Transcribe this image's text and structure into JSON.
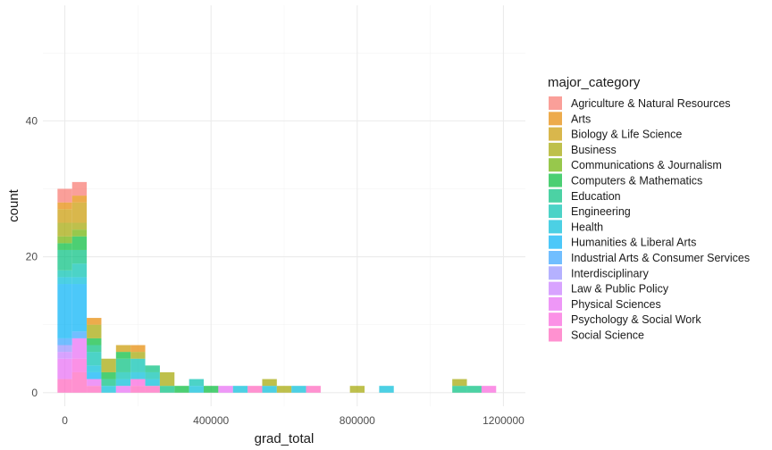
{
  "chart_data": {
    "type": "bar",
    "subtype": "stacked-histogram",
    "title": "",
    "xlabel": "grad_total",
    "ylabel": "count",
    "xlim": [
      -60000,
      1260000
    ],
    "ylim": [
      -2,
      57
    ],
    "x_ticks": [
      0,
      400000,
      800000,
      1200000
    ],
    "x_tick_labels": [
      "0",
      "400000",
      "800000",
      "1200000"
    ],
    "y_ticks": [
      0,
      20,
      40
    ],
    "y_tick_labels": [
      "0",
      "20",
      "40"
    ],
    "grid": true,
    "bin_width": 40000,
    "legend": {
      "title": "major_category",
      "placement": "right"
    },
    "series": [
      {
        "name": "Agriculture & Natural Resources",
        "color": "#F8766D"
      },
      {
        "name": "Arts",
        "color": "#E58700"
      },
      {
        "name": "Biology & Life Science",
        "color": "#C99800"
      },
      {
        "name": "Business",
        "color": "#A3A500"
      },
      {
        "name": "Communications & Journalism",
        "color": "#6BB100"
      },
      {
        "name": "Computers & Mathematics",
        "color": "#00BA38"
      },
      {
        "name": "Education",
        "color": "#00BF7D"
      },
      {
        "name": "Engineering",
        "color": "#00C0AF"
      },
      {
        "name": "Health",
        "color": "#00BCD8"
      },
      {
        "name": "Humanities & Liberal Arts",
        "color": "#00B0F6"
      },
      {
        "name": "Industrial Arts & Consumer Services",
        "color": "#35A2FF"
      },
      {
        "name": "Interdisciplinary",
        "color": "#9590FF"
      },
      {
        "name": "Law & Public Policy",
        "color": "#C77CFF"
      },
      {
        "name": "Physical Sciences",
        "color": "#E76BF3"
      },
      {
        "name": "Psychology & Social Work",
        "color": "#FA62DB"
      },
      {
        "name": "Social Science",
        "color": "#FF62BC"
      }
    ],
    "bins": [
      {
        "x": 0,
        "counts": [
          2,
          1,
          2,
          2,
          1,
          1,
          3,
          1,
          1,
          8,
          1,
          1,
          1,
          3,
          0,
          2
        ]
      },
      {
        "x": 40000,
        "counts": [
          2,
          1,
          3,
          1,
          1,
          2,
          2,
          2,
          1,
          7,
          1,
          0,
          0,
          3,
          2,
          3
        ]
      },
      {
        "x": 80000,
        "counts": [
          0,
          1,
          0,
          2,
          0,
          1,
          1,
          2,
          1,
          1,
          0,
          0,
          0,
          1,
          0,
          1
        ]
      },
      {
        "x": 120000,
        "counts": [
          0,
          0,
          0,
          2,
          0,
          1,
          1,
          0,
          1,
          0,
          0,
          0,
          0,
          0,
          0,
          0
        ]
      },
      {
        "x": 160000,
        "counts": [
          0,
          0,
          1,
          0,
          0,
          1,
          2,
          1,
          1,
          0,
          0,
          0,
          0,
          1,
          0,
          0
        ]
      },
      {
        "x": 200000,
        "counts": [
          0,
          1,
          0,
          1,
          0,
          0,
          0,
          2,
          1,
          0,
          0,
          0,
          0,
          0,
          1,
          1
        ]
      },
      {
        "x": 240000,
        "counts": [
          0,
          0,
          0,
          0,
          0,
          0,
          1,
          1,
          1,
          0,
          0,
          0,
          0,
          0,
          0,
          1
        ]
      },
      {
        "x": 280000,
        "counts": [
          0,
          0,
          0,
          2,
          0,
          0,
          1,
          0,
          0,
          0,
          0,
          0,
          0,
          0,
          0,
          0
        ]
      },
      {
        "x": 320000,
        "counts": [
          0,
          0,
          0,
          0,
          0,
          1,
          0,
          0,
          0,
          0,
          0,
          0,
          0,
          0,
          0,
          0
        ]
      },
      {
        "x": 360000,
        "counts": [
          0,
          0,
          0,
          0,
          0,
          0,
          0,
          1,
          1,
          0,
          0,
          0,
          0,
          0,
          0,
          0
        ]
      },
      {
        "x": 400000,
        "counts": [
          0,
          0,
          0,
          0,
          0,
          1,
          0,
          0,
          0,
          0,
          0,
          0,
          0,
          0,
          0,
          0
        ]
      },
      {
        "x": 440000,
        "counts": [
          0,
          0,
          0,
          0,
          0,
          0,
          0,
          0,
          0,
          0,
          0,
          0,
          0,
          1,
          0,
          0
        ]
      },
      {
        "x": 480000,
        "counts": [
          0,
          0,
          0,
          0,
          0,
          0,
          0,
          0,
          1,
          0,
          0,
          0,
          0,
          0,
          0,
          0
        ]
      },
      {
        "x": 520000,
        "counts": [
          0,
          0,
          0,
          0,
          0,
          0,
          0,
          0,
          0,
          0,
          0,
          0,
          0,
          0,
          0,
          1
        ]
      },
      {
        "x": 560000,
        "counts": [
          0,
          0,
          0,
          1,
          0,
          0,
          0,
          0,
          1,
          0,
          0,
          0,
          0,
          0,
          0,
          0
        ]
      },
      {
        "x": 600000,
        "counts": [
          0,
          0,
          0,
          1,
          0,
          0,
          0,
          0,
          0,
          0,
          0,
          0,
          0,
          0,
          0,
          0
        ]
      },
      {
        "x": 640000,
        "counts": [
          0,
          0,
          0,
          0,
          0,
          0,
          0,
          0,
          1,
          0,
          0,
          0,
          0,
          0,
          0,
          0
        ]
      },
      {
        "x": 680000,
        "counts": [
          0,
          0,
          0,
          0,
          0,
          0,
          0,
          0,
          0,
          0,
          0,
          0,
          0,
          0,
          0,
          1
        ]
      },
      {
        "x": 800000,
        "counts": [
          0,
          0,
          0,
          1,
          0,
          0,
          0,
          0,
          0,
          0,
          0,
          0,
          0,
          0,
          0,
          0
        ]
      },
      {
        "x": 880000,
        "counts": [
          0,
          0,
          0,
          0,
          0,
          0,
          0,
          0,
          1,
          0,
          0,
          0,
          0,
          0,
          0,
          0
        ]
      },
      {
        "x": 1080000,
        "counts": [
          0,
          0,
          0,
          1,
          0,
          0,
          1,
          0,
          0,
          0,
          0,
          0,
          0,
          0,
          0,
          0
        ]
      },
      {
        "x": 1120000,
        "counts": [
          0,
          0,
          0,
          0,
          0,
          0,
          1,
          0,
          0,
          0,
          0,
          0,
          0,
          0,
          0,
          0
        ]
      },
      {
        "x": 1160000,
        "counts": [
          0,
          0,
          0,
          0,
          0,
          0,
          0,
          0,
          0,
          0,
          0,
          0,
          0,
          0,
          1,
          0
        ]
      }
    ]
  }
}
